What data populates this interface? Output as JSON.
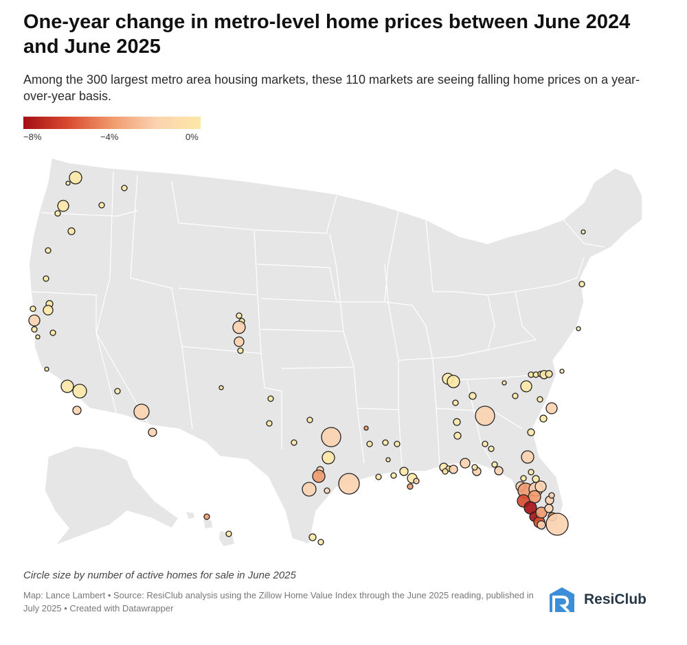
{
  "header": {
    "title": "One-year change in metro-level home prices between June 2024 and June 2025",
    "subtitle": "Among the 300 largest metro area housing markets, these 110 markets are seeing falling home prices on a year-over-year basis."
  },
  "legend": {
    "ticks": [
      "−8%",
      "−4%",
      "0%"
    ],
    "min": -8,
    "max": 0
  },
  "colors": {
    "scale_low": "#a50f15",
    "scale_mid": "#f09a6e",
    "scale_high": "#fde8a6",
    "land": "#e6e6e6",
    "borders": "#ffffff"
  },
  "footer": {
    "caption": "Circle size by number of active homes for sale in June 2025",
    "credit": "Map: Lance Lambert • Source: ResiClub analysis using the Zillow Home Value Index through the June 2025 reading, published in July 2025 • Created with Datawrapper",
    "logo_text": "ResiClub",
    "logo_icon": "resiclub-logo-icon"
  }
}
